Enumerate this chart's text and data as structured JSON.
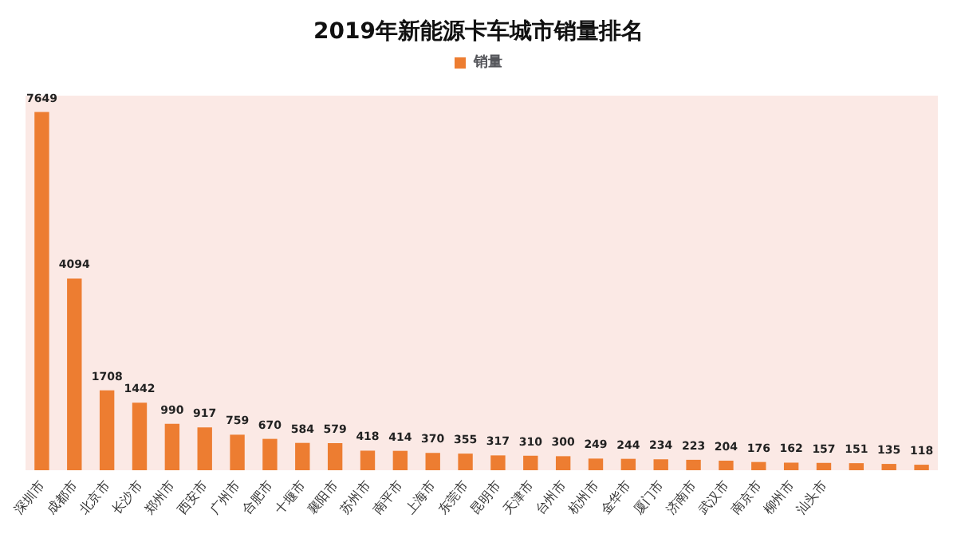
{
  "chart_data": {
    "type": "bar",
    "title": "2019年新能源卡车城市销量排名",
    "categories": [
      "深圳市",
      "成都市",
      "北京市",
      "长沙市",
      "郑州市",
      "西安市",
      "广州市",
      "合肥市",
      "十堰市",
      "襄阳市",
      "苏州市",
      "南平市",
      "上海市",
      "东莞市",
      "昆明市",
      "天津市",
      "台州市",
      "杭州市",
      "金华市",
      "厦门市",
      "济南市",
      "武汉市",
      "南京市",
      "柳州市",
      "汕头市",
      null,
      null,
      null
    ],
    "series": [
      {
        "name": "销量",
        "color": "#ed7d31",
        "values": [
          7649,
          4094,
          1708,
          1442,
          990,
          917,
          759,
          670,
          584,
          579,
          418,
          414,
          370,
          355,
          317,
          310,
          300,
          249,
          244,
          234,
          223,
          204,
          176,
          162,
          157,
          151,
          135,
          118
        ]
      }
    ],
    "data_labels": true,
    "legend": "top"
  }
}
